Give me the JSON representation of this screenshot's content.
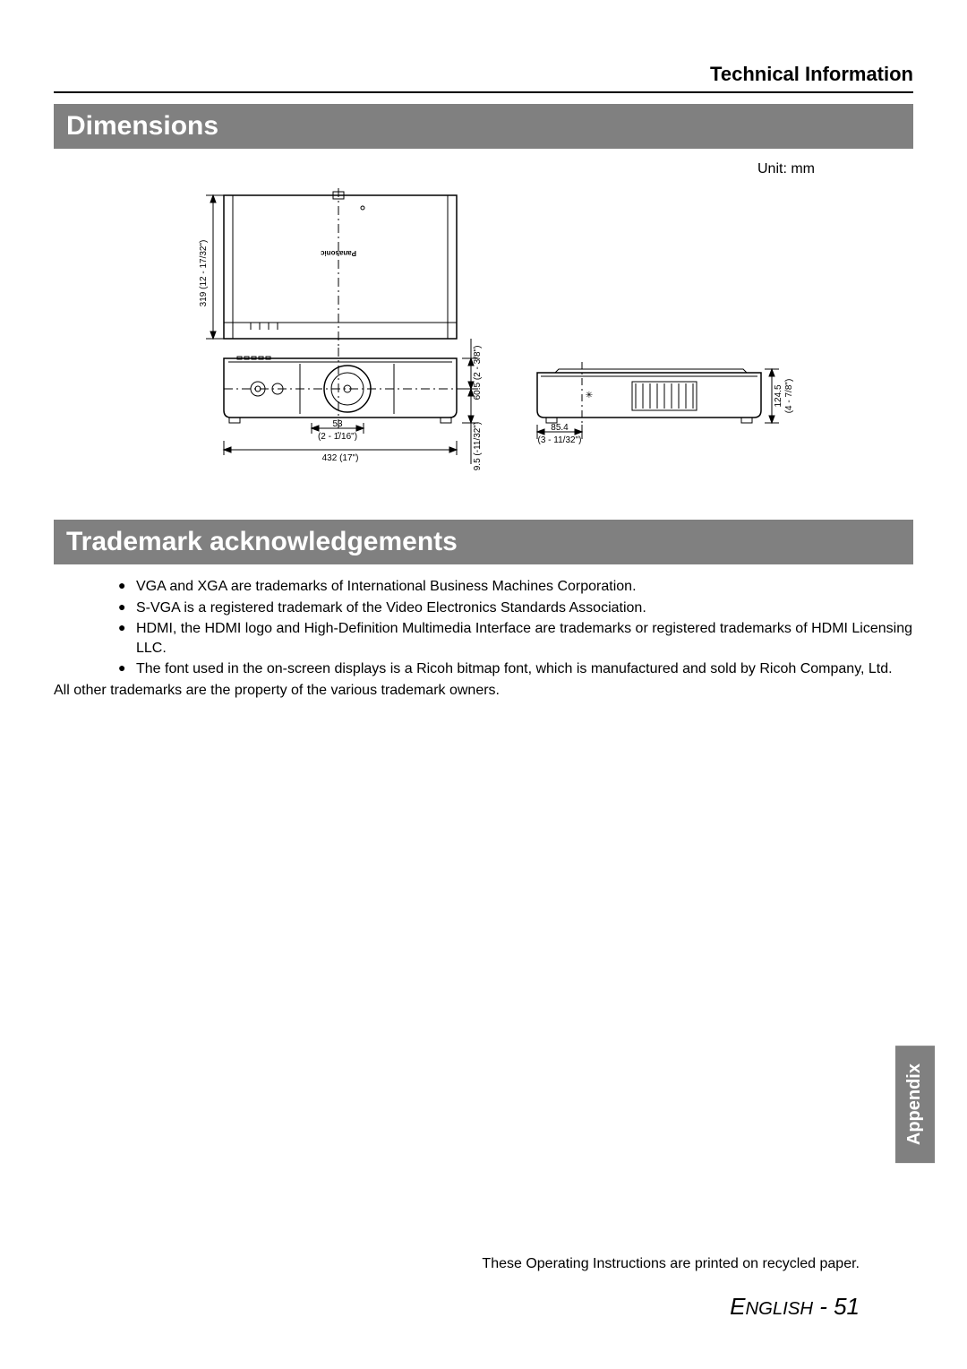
{
  "header": {
    "title": "Technical Information"
  },
  "section1": {
    "heading": "Dimensions",
    "unit_label": "Unit: mm"
  },
  "dimensions_diagram": {
    "type": "engineering-dimension-drawing",
    "views": [
      "bottom",
      "front",
      "side"
    ],
    "brand": "Panasonic",
    "stroke_color": "#000000",
    "background_color": "#ffffff",
    "font_size_pt": 8,
    "measurements": {
      "height_bottom_view": {
        "mm": "319",
        "in": "(12 - 17/32\")"
      },
      "lens_offset": {
        "mm": "53",
        "in": "(2 - 1/16\")"
      },
      "width": {
        "mm": "432",
        "in": "(17\")"
      },
      "front_lower": {
        "mm": "9.5",
        "in": "(-11/32\")"
      },
      "front_upper": {
        "mm": "60.5",
        "in": "(2 - 3/8\")"
      },
      "side_offset": {
        "mm": "85.4",
        "in": "(3 - 11/32\")"
      },
      "side_height": {
        "mm": "124.5",
        "in": "(4 - 7/8\")"
      }
    }
  },
  "section2": {
    "heading": "Trademark acknowledgements",
    "bullets": [
      "VGA and XGA are trademarks of International Business Machines Corporation.",
      "S-VGA is a registered trademark of the Video Electronics Standards Association.",
      "HDMI, the HDMI logo and High-Definition Multimedia Interface are trademarks or registered trademarks of HDMI Licensing LLC.",
      "The font used in the on-screen displays is a Ricoh bitmap font, which is manufactured and sold by Ricoh Company, Ltd."
    ],
    "closing": "All other trademarks are the property of the various trademark owners."
  },
  "appendix_tab": "Appendix",
  "recycled_note": "These Operating Instructions are printed on recycled paper.",
  "footer": {
    "language": "English",
    "page": "51",
    "sep": " - "
  }
}
